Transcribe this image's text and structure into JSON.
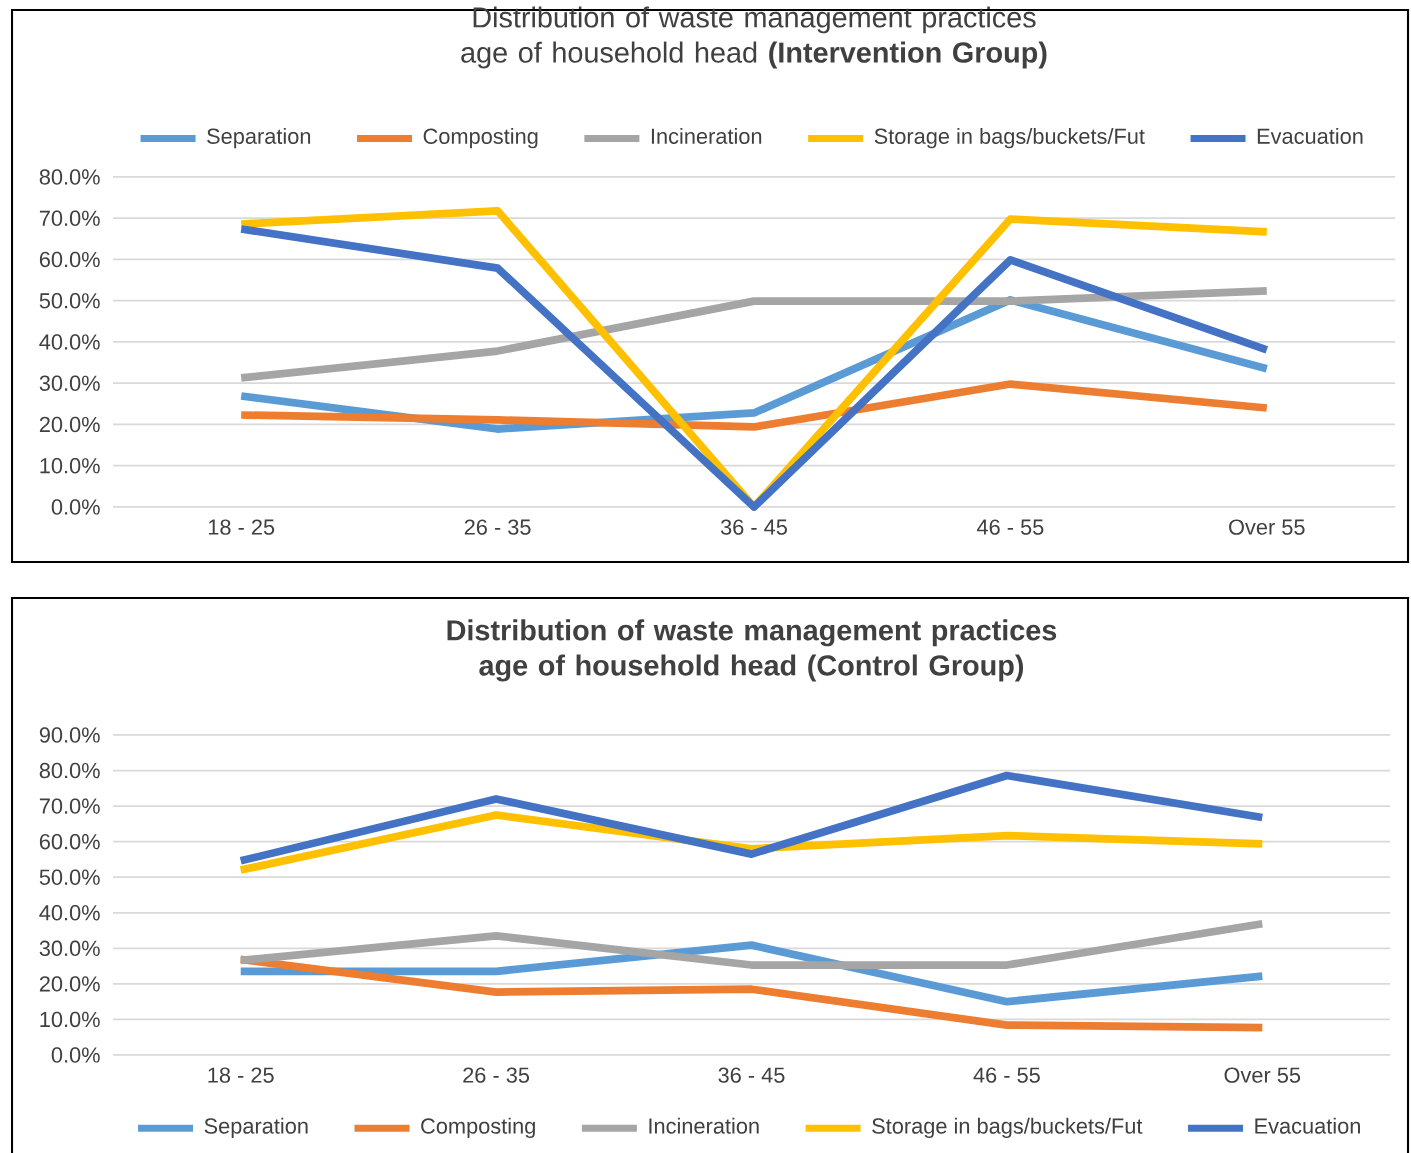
{
  "chart_data": [
    {
      "type": "line",
      "title": "Distribution of waste management practices age of household head **(Intervention Group)**",
      "categories": [
        "18 - 25",
        "26 - 35",
        "36 - 45",
        "46 - 55",
        "Over 55"
      ],
      "series": [
        {
          "name": "Separation",
          "color": "#5b9bd5",
          "values": [
            26.9,
            18.9,
            22.8,
            50.2,
            33.5
          ]
        },
        {
          "name": "Composting",
          "color": "#ed7d31",
          "values": [
            22.3,
            21.1,
            19.4,
            29.8,
            24.0
          ]
        },
        {
          "name": "Incineration",
          "color": "#a5a5a5",
          "values": [
            31.3,
            37.8,
            49.9,
            49.9,
            52.4
          ]
        },
        {
          "name": "Storage in bags/buckets/Fut",
          "color": "#ffc000",
          "values": [
            68.6,
            71.8,
            0.0,
            69.8,
            66.7
          ]
        },
        {
          "name": "Evacuation",
          "color": "#4472c4",
          "values": [
            67.4,
            57.9,
            0.0,
            59.9,
            38.1
          ]
        }
      ],
      "ylim": [
        0,
        80
      ],
      "yticks": [
        {
          "value": 0,
          "label": "0.0%"
        },
        {
          "value": 10,
          "label": "10.0%"
        },
        {
          "value": 20,
          "label": "20.0%"
        },
        {
          "value": 30,
          "label": "30.0%"
        },
        {
          "value": 40,
          "label": "40.0%"
        },
        {
          "value": 50,
          "label": "50.0%"
        },
        {
          "value": 60,
          "label": "60.0%"
        },
        {
          "value": 70,
          "label": "70.0%"
        },
        {
          "value": 80,
          "label": "80.0%"
        }
      ],
      "grid": "y",
      "legend": "top",
      "marker": "none",
      "line_style": "solid"
    },
    {
      "type": "line",
      "title": "**Distribution of waste management practices age of household head (Control Group)**",
      "categories": [
        "18 - 25",
        "26 - 35",
        "36 - 45",
        "46 - 55",
        "Over 55"
      ],
      "series": [
        {
          "name": "Separation",
          "color": "#5b9bd5",
          "values": [
            23.5,
            23.5,
            30.9,
            15.0,
            22.2
          ]
        },
        {
          "name": "Composting",
          "color": "#ed7d31",
          "values": [
            26.9,
            17.7,
            18.5,
            8.4,
            7.7
          ]
        },
        {
          "name": "Incineration",
          "color": "#a5a5a5",
          "values": [
            26.6,
            33.5,
            25.3,
            25.3,
            36.9
          ]
        },
        {
          "name": "Storage in bags/buckets/Fut",
          "color": "#ffc000",
          "values": [
            52.0,
            67.5,
            58.0,
            61.7,
            59.4
          ]
        },
        {
          "name": "Evacuation",
          "color": "#4472c4",
          "values": [
            54.6,
            72.0,
            56.5,
            78.6,
            66.8
          ]
        }
      ],
      "ylim": [
        0,
        90
      ],
      "yticks": [
        {
          "value": 0,
          "label": "0.0%"
        },
        {
          "value": 10,
          "label": "10.0%"
        },
        {
          "value": 20,
          "label": "20.0%"
        },
        {
          "value": 30,
          "label": "30.0%"
        },
        {
          "value": 40,
          "label": "40.0%"
        },
        {
          "value": 50,
          "label": "50.0%"
        },
        {
          "value": 60,
          "label": "60.0%"
        },
        {
          "value": 70,
          "label": "70.0%"
        },
        {
          "value": 80,
          "label": "80.0%"
        },
        {
          "value": 90,
          "label": "90.0%"
        }
      ],
      "grid": "y",
      "legend": "bottom",
      "marker": "none",
      "line_style": "solid"
    }
  ]
}
